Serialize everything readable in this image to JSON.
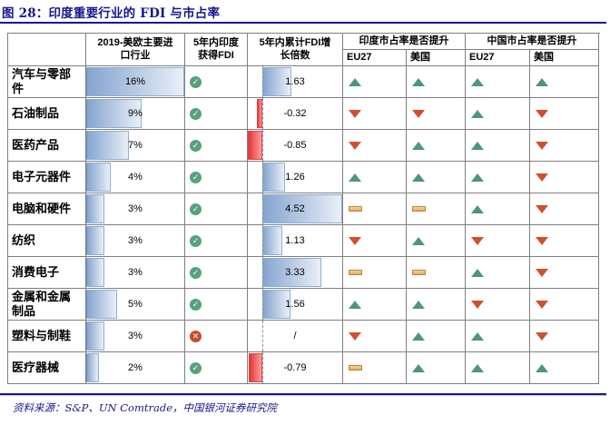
{
  "title": "图 28：印度重要行业的 FDI 与市占率",
  "source": "资料来源：S&P、UN Comtrade，中国银河证券研究院",
  "colors": {
    "accent_navy": "#17178c",
    "border_gray": "#7f7f7f",
    "bar_blue_dark": "#84a4cf",
    "bar_blue_light": "#e9eff7",
    "bar_red_dark": "#e53535",
    "bar_red_light": "#ff9d9d",
    "up_green": "#4e9678",
    "down_red": "#d0502e",
    "flat_orange": "#e5a95c",
    "check_green": "#55a27d",
    "cross_red": "#c94b2c"
  },
  "header": {
    "industry_col": "",
    "import_col": "2019-美欧主要进\n口行业",
    "fdi_received_col": "5年内印度\n获得FDI",
    "fdi_growth_col": "5年内累计FDI增\n长倍数",
    "india_share_group": "印度市占率是否提升",
    "china_share_group": "中国市占率是否提升",
    "sub_eu_india": "EU27",
    "sub_us_india": "美国",
    "sub_eu_china": "EU27",
    "sub_us_china": "美国"
  },
  "chart_data": {
    "type": "table",
    "title": "印度重要行业的 FDI 与市占率",
    "import_share_axis": {
      "min": 0,
      "max": 16,
      "unit": "%"
    },
    "fdi_growth_axis": {
      "min": -0.85,
      "max": 4.52
    },
    "trend_legend": {
      "up": "提升",
      "down": "下降",
      "flat": "持平"
    },
    "rows": [
      {
        "industry": "汽车与零部件",
        "import_share_pct": 16,
        "share_label": "16%",
        "fdi_received": true,
        "fdi_growth": 1.63,
        "growth_label": "1.63",
        "india_eu27": "up",
        "india_us": "up",
        "china_eu27": "up",
        "china_us": "up"
      },
      {
        "industry": "石油制品",
        "import_share_pct": 9,
        "share_label": "9%",
        "fdi_received": true,
        "fdi_growth": -0.32,
        "growth_label": "-0.32",
        "india_eu27": "down",
        "india_us": "down",
        "china_eu27": "up",
        "china_us": "down"
      },
      {
        "industry": "医药产品",
        "import_share_pct": 7,
        "share_label": "7%",
        "fdi_received": true,
        "fdi_growth": -0.85,
        "growth_label": "-0.85",
        "india_eu27": "down",
        "india_us": "up",
        "china_eu27": "up",
        "china_us": "down"
      },
      {
        "industry": "电子元器件",
        "import_share_pct": 4,
        "share_label": "4%",
        "fdi_received": true,
        "fdi_growth": 1.26,
        "growth_label": "1.26",
        "india_eu27": "up",
        "india_us": "up",
        "china_eu27": "up",
        "china_us": "down"
      },
      {
        "industry": "电脑和硬件",
        "import_share_pct": 3,
        "share_label": "3%",
        "fdi_received": true,
        "fdi_growth": 4.52,
        "growth_label": "4.52",
        "india_eu27": "flat",
        "india_us": "flat",
        "china_eu27": "up",
        "china_us": "down"
      },
      {
        "industry": "纺织",
        "import_share_pct": 3,
        "share_label": "3%",
        "fdi_received": true,
        "fdi_growth": 1.13,
        "growth_label": "1.13",
        "india_eu27": "down",
        "india_us": "up",
        "china_eu27": "down",
        "china_us": "down"
      },
      {
        "industry": "消费电子",
        "import_share_pct": 3,
        "share_label": "3%",
        "fdi_received": true,
        "fdi_growth": 3.33,
        "growth_label": "3.33",
        "india_eu27": "flat",
        "india_us": "flat",
        "china_eu27": "up",
        "china_us": "down"
      },
      {
        "industry": "金属和金属制品",
        "import_share_pct": 5,
        "share_label": "5%",
        "fdi_received": true,
        "fdi_growth": 1.56,
        "growth_label": "1.56",
        "india_eu27": "up",
        "india_us": "up",
        "china_eu27": "down",
        "china_us": "down"
      },
      {
        "industry": "塑料与制鞋",
        "import_share_pct": 3,
        "share_label": "3%",
        "fdi_received": false,
        "fdi_growth": null,
        "growth_label": "/",
        "india_eu27": "down",
        "india_us": "up",
        "china_eu27": "up",
        "china_us": "down"
      },
      {
        "industry": "医疗器械",
        "import_share_pct": 2,
        "share_label": "2%",
        "fdi_received": true,
        "fdi_growth": -0.79,
        "growth_label": "-0.79",
        "india_eu27": "flat",
        "india_us": "up",
        "china_eu27": "up",
        "china_us": "up"
      }
    ]
  }
}
